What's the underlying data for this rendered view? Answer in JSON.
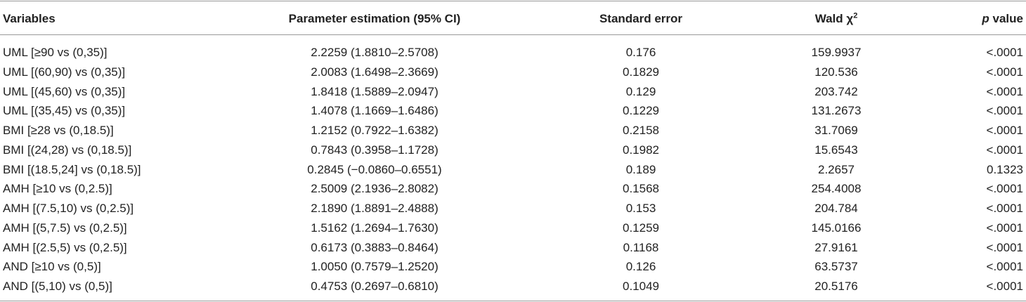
{
  "table": {
    "header": [
      "Variables",
      "Parameter estimation (95% CI)",
      "Standard error",
      {
        "text": "Wald χ",
        "sup": "2"
      },
      {
        "italic": "p",
        "text": " value"
      }
    ],
    "rows": [
      [
        "UML [≥90 vs (0,35)]",
        "2.2259 (1.8810–2.5708)",
        "0.176",
        "159.9937",
        "<.0001"
      ],
      [
        "UML [(60,90) vs (0,35)]",
        "2.0083 (1.6498–2.3669)",
        "0.1829",
        "120.536",
        "<.0001"
      ],
      [
        "UML [(45,60) vs (0,35)]",
        "1.8418 (1.5889–2.0947)",
        "0.129",
        "203.742",
        "<.0001"
      ],
      [
        "UML [(35,45) vs (0,35)]",
        "1.4078 (1.1669–1.6486)",
        "0.1229",
        "131.2673",
        "<.0001"
      ],
      [
        "BMI [≥28 vs (0,18.5)]",
        "1.2152 (0.7922–1.6382)",
        "0.2158",
        "31.7069",
        "<.0001"
      ],
      [
        "BMI [(24,28) vs (0,18.5)]",
        "0.7843 (0.3958–1.1728)",
        "0.1982",
        "15.6543",
        "<.0001"
      ],
      [
        "BMI [(18.5,24] vs (0,18.5)]",
        "0.2845 (−0.0860–0.6551)",
        "0.189",
        "2.2657",
        "0.1323"
      ],
      [
        "AMH [≥10 vs (0,2.5)]",
        "2.5009 (2.1936–2.8082)",
        "0.1568",
        "254.4008",
        "<.0001"
      ],
      [
        "AMH [(7.5,10) vs (0,2.5)]",
        "2.1890 (1.8891–2.4888)",
        "0.153",
        "204.784",
        "<.0001"
      ],
      [
        "AMH [(5,7.5) vs (0,2.5)]",
        "1.5162 (1.2694–1.7630)",
        "0.1259",
        "145.0166",
        "<.0001"
      ],
      [
        "AMH [(2.5,5) vs (0,2.5)]",
        "0.6173 (0.3883–0.8464)",
        "0.1168",
        "27.9161",
        "<.0001"
      ],
      [
        "AND [≥10 vs (0,5)]",
        "1.0050 (0.7579–1.2520)",
        "0.126",
        "63.5737",
        "<.0001"
      ],
      [
        "AND [(5,10) vs (0,5)]",
        "0.4753 (0.2697–0.6810)",
        "0.1049",
        "20.5176",
        "<.0001"
      ]
    ]
  }
}
